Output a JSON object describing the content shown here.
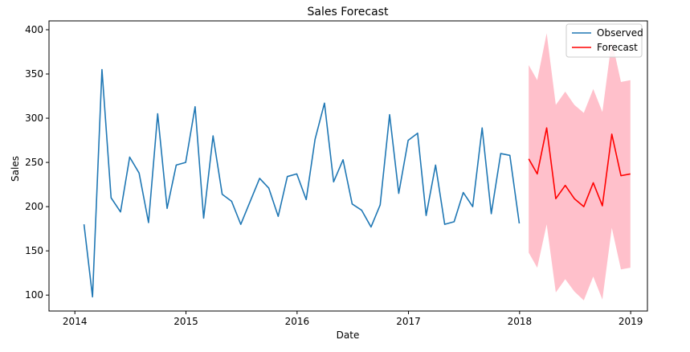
{
  "chart_data": {
    "type": "line",
    "title": "Sales Forecast",
    "xlabel": "Date",
    "ylabel": "Sales",
    "xlim": [
      "2013-10-08",
      "2019-02-25"
    ],
    "ylim": [
      82,
      410
    ],
    "x_ticks": [
      "2014",
      "2015",
      "2016",
      "2017",
      "2018",
      "2019"
    ],
    "y_ticks": [
      "100",
      "150",
      "200",
      "250",
      "300",
      "350",
      "400"
    ],
    "grid": false,
    "legend_position": "top-right",
    "series": [
      {
        "name": "Observed",
        "color": "#1f77b4",
        "x": [
          "2014-01-31",
          "2014-02-28",
          "2014-03-31",
          "2014-04-30",
          "2014-05-31",
          "2014-06-30",
          "2014-07-31",
          "2014-08-31",
          "2014-09-30",
          "2014-10-31",
          "2014-11-30",
          "2014-12-31",
          "2015-01-31",
          "2015-02-28",
          "2015-03-31",
          "2015-04-30",
          "2015-05-31",
          "2015-06-30",
          "2015-07-31",
          "2015-08-31",
          "2015-09-30",
          "2015-10-31",
          "2015-11-30",
          "2015-12-31",
          "2016-01-31",
          "2016-02-29",
          "2016-03-31",
          "2016-04-30",
          "2016-05-31",
          "2016-06-30",
          "2016-07-31",
          "2016-08-31",
          "2016-09-30",
          "2016-10-31",
          "2016-11-30",
          "2016-12-31",
          "2017-01-31",
          "2017-02-28",
          "2017-03-31",
          "2017-04-30",
          "2017-05-31",
          "2017-06-30",
          "2017-07-31",
          "2017-08-31",
          "2017-09-30",
          "2017-10-31",
          "2017-11-30",
          "2017-12-31"
        ],
        "values": [
          180,
          98,
          355,
          210,
          194,
          256,
          238,
          182,
          305,
          198,
          247,
          250,
          313,
          187,
          280,
          214,
          206,
          180,
          206,
          232,
          221,
          189,
          234,
          237,
          208,
          276,
          317,
          228,
          253,
          203,
          196,
          177,
          202,
          304,
          215,
          275,
          283,
          190,
          247,
          180,
          183,
          216,
          200,
          289,
          192,
          260,
          258,
          181
        ]
      },
      {
        "name": "Forecast",
        "color": "#ff0000",
        "x": [
          "2018-01-31",
          "2018-02-28",
          "2018-03-31",
          "2018-04-30",
          "2018-05-31",
          "2018-06-30",
          "2018-07-31",
          "2018-08-31",
          "2018-09-30",
          "2018-10-31",
          "2018-11-30",
          "2018-12-31"
        ],
        "values": [
          254,
          237,
          289,
          209,
          224,
          209,
          200,
          227,
          201,
          282,
          235,
          237
        ],
        "lower": [
          148,
          131,
          180,
          103,
          118,
          104,
          94,
          121,
          95,
          176,
          129,
          131
        ],
        "upper": [
          360,
          343,
          396,
          315,
          330,
          315,
          306,
          333,
          307,
          388,
          341,
          343
        ],
        "band_color": "#ffc0cb"
      }
    ]
  }
}
